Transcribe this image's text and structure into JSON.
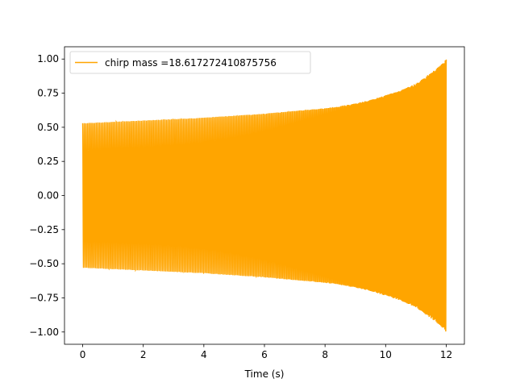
{
  "chart_data": {
    "type": "line",
    "title": "",
    "xlabel": "Time (s)",
    "ylabel": "",
    "xlim": [
      -0.6,
      12.6
    ],
    "ylim": [
      -1.09,
      1.09
    ],
    "x_ticks": [
      0,
      2,
      4,
      6,
      8,
      10,
      12
    ],
    "x_tick_labels": [
      "0",
      "2",
      "4",
      "6",
      "8",
      "10",
      "12"
    ],
    "y_ticks": [
      -1.0,
      -0.75,
      -0.5,
      -0.25,
      0.0,
      0.25,
      0.5,
      0.75,
      1.0
    ],
    "y_tick_labels": [
      "−1.00",
      "−0.75",
      "−0.50",
      "−0.25",
      "0.00",
      "0.25",
      "0.50",
      "0.75",
      "1.00"
    ],
    "grid": false,
    "legend_position": "upper-left",
    "series": [
      {
        "name": "chirp mass =18.617272410875756",
        "color": "#ffa500",
        "x": [
          0,
          0.5,
          1,
          1.5,
          2,
          2.5,
          3,
          3.5,
          4,
          4.5,
          5,
          5.5,
          6,
          6.5,
          7,
          7.5,
          8,
          8.5,
          9,
          9.5,
          10,
          10.5,
          11,
          11.5,
          11.8,
          12
        ],
        "upper_envelope": [
          0.53,
          0.535,
          0.54,
          0.545,
          0.55,
          0.555,
          0.56,
          0.565,
          0.57,
          0.578,
          0.585,
          0.592,
          0.6,
          0.61,
          0.62,
          0.63,
          0.64,
          0.655,
          0.675,
          0.7,
          0.735,
          0.77,
          0.82,
          0.9,
          0.95,
          1.0
        ],
        "lower_envelope": [
          -0.53,
          -0.535,
          -0.54,
          -0.545,
          -0.55,
          -0.555,
          -0.56,
          -0.565,
          -0.57,
          -0.578,
          -0.585,
          -0.592,
          -0.6,
          -0.61,
          -0.62,
          -0.63,
          -0.64,
          -0.655,
          -0.675,
          -0.7,
          -0.735,
          -0.77,
          -0.82,
          -0.9,
          -0.95,
          -1.0
        ]
      }
    ]
  }
}
